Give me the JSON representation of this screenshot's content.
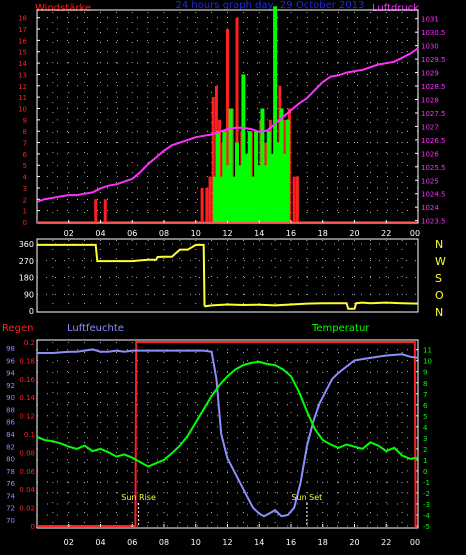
{
  "header": {
    "left_label": "Windstärke",
    "title": "24 hours graph day, 29 October 2013",
    "right_label": "Luftdruck"
  },
  "colors": {
    "red": "#ff2020",
    "blue_title": "#1d2ae0",
    "magenta": "#ff30ff",
    "green": "#00ff00",
    "yellow": "#ffff30",
    "blue_line": "#8e8eff",
    "tick_white": "#ffffff",
    "grid_dot": "#e0e0e0"
  },
  "chart_data": [
    {
      "type": "line",
      "name": "wind-pressure",
      "x_tick_labels": [
        "02",
        "04",
        "06",
        "08",
        "10",
        "12",
        "14",
        "16",
        "18",
        "20",
        "22",
        "00"
      ],
      "y_left": {
        "label": "Windstärke",
        "ticks": [
          0,
          1,
          2,
          3,
          4,
          5,
          6,
          7,
          8,
          9,
          10,
          11,
          12,
          13,
          14,
          15,
          16,
          17,
          18
        ],
        "range": [
          0,
          18.5
        ]
      },
      "y_right": {
        "label": "Luftdruck",
        "ticks": [
          1023.5,
          1024,
          1024.5,
          1025,
          1025.5,
          1026,
          1026.5,
          1027,
          1027.5,
          1028,
          1028.5,
          1029,
          1029.5,
          1030,
          1030.5,
          1031
        ],
        "range": [
          1023.45,
          1031.25
        ]
      },
      "pressure_x": [
        0,
        0.5,
        1,
        1.5,
        2,
        2.5,
        3,
        3.5,
        4,
        4.5,
        5,
        5.5,
        6,
        6.5,
        7,
        7.5,
        8,
        8.5,
        9,
        9.5,
        10,
        10.5,
        11,
        11.5,
        12,
        12.5,
        13,
        13.5,
        14,
        14.5,
        15,
        15.5,
        16,
        16.5,
        17,
        17.5,
        18,
        18.5,
        19,
        19.5,
        20,
        20.5,
        21,
        21.5,
        22,
        22.5,
        23,
        23.5,
        24
      ],
      "pressure_y": [
        1024.2,
        1024.3,
        1024.35,
        1024.4,
        1024.45,
        1024.45,
        1024.5,
        1024.55,
        1024.7,
        1024.8,
        1024.85,
        1024.95,
        1025.05,
        1025.3,
        1025.6,
        1025.85,
        1026.1,
        1026.3,
        1026.4,
        1026.5,
        1026.6,
        1026.65,
        1026.7,
        1026.8,
        1026.9,
        1026.95,
        1026.95,
        1026.9,
        1026.8,
        1026.85,
        1027.1,
        1027.35,
        1027.6,
        1027.85,
        1028.05,
        1028.35,
        1028.65,
        1028.85,
        1028.9,
        1029.0,
        1029.05,
        1029.1,
        1029.2,
        1029.3,
        1029.35,
        1029.4,
        1029.55,
        1029.7,
        1029.9
      ],
      "wind_gusts": [
        {
          "x": 3.7,
          "v": 2
        },
        {
          "x": 4.3,
          "v": 2
        },
        {
          "x": 10.4,
          "v": 3
        },
        {
          "x": 10.7,
          "v": 3
        },
        {
          "x": 10.9,
          "v": 4
        },
        {
          "x": 11.1,
          "v": 11
        },
        {
          "x": 11.3,
          "v": 12
        },
        {
          "x": 11.5,
          "v": 9
        },
        {
          "x": 11.7,
          "v": 7
        },
        {
          "x": 12.0,
          "v": 17
        },
        {
          "x": 12.3,
          "v": 10
        },
        {
          "x": 12.6,
          "v": 18
        },
        {
          "x": 12.9,
          "v": 8
        },
        {
          "x": 13.2,
          "v": 6
        },
        {
          "x": 13.5,
          "v": 8
        },
        {
          "x": 13.8,
          "v": 7
        },
        {
          "x": 14.1,
          "v": 9
        },
        {
          "x": 14.4,
          "v": 7
        },
        {
          "x": 14.7,
          "v": 9
        },
        {
          "x": 15.0,
          "v": 8
        },
        {
          "x": 15.3,
          "v": 12
        },
        {
          "x": 15.6,
          "v": 9
        },
        {
          "x": 15.9,
          "v": 10
        },
        {
          "x": 16.2,
          "v": 4
        },
        {
          "x": 16.4,
          "v": 4
        }
      ],
      "wind_avg": [
        {
          "x": 11.2,
          "v": 4
        },
        {
          "x": 11.4,
          "v": 8
        },
        {
          "x": 11.6,
          "v": 4
        },
        {
          "x": 11.8,
          "v": 8
        },
        {
          "x": 12.0,
          "v": 5
        },
        {
          "x": 12.2,
          "v": 10
        },
        {
          "x": 12.4,
          "v": 4
        },
        {
          "x": 12.6,
          "v": 7
        },
        {
          "x": 12.8,
          "v": 5
        },
        {
          "x": 13.0,
          "v": 13
        },
        {
          "x": 13.2,
          "v": 6
        },
        {
          "x": 13.4,
          "v": 8
        },
        {
          "x": 13.6,
          "v": 4
        },
        {
          "x": 13.8,
          "v": 8
        },
        {
          "x": 14.0,
          "v": 5
        },
        {
          "x": 14.2,
          "v": 10
        },
        {
          "x": 14.4,
          "v": 5
        },
        {
          "x": 14.6,
          "v": 8
        },
        {
          "x": 14.8,
          "v": 6
        },
        {
          "x": 15.0,
          "v": 19
        },
        {
          "x": 15.2,
          "v": 7
        },
        {
          "x": 15.4,
          "v": 10
        },
        {
          "x": 15.6,
          "v": 6
        },
        {
          "x": 15.8,
          "v": 9
        }
      ]
    },
    {
      "type": "line",
      "name": "wind-direction",
      "y_left": {
        "ticks": [
          0,
          90,
          180,
          270,
          360
        ],
        "range": [
          0,
          360
        ]
      },
      "compass_labels": [
        "N",
        "W",
        "S",
        "O",
        "N"
      ],
      "direction_x": [
        0,
        1,
        2,
        3,
        3.7,
        3.8,
        4.5,
        5,
        5.5,
        6,
        6.5,
        7,
        7.5,
        7.6,
        8,
        8.5,
        9,
        9.5,
        10,
        10.5,
        10.55,
        10.6,
        11,
        12,
        13,
        14,
        15,
        16,
        17,
        18,
        19,
        19.5,
        19.6,
        20,
        20.1,
        20.5,
        21,
        22,
        23,
        24
      ],
      "direction_y": [
        355,
        355,
        355,
        355,
        355,
        268,
        268,
        268,
        268,
        268,
        272,
        275,
        275,
        290,
        292,
        292,
        330,
        330,
        355,
        355,
        30,
        25,
        30,
        35,
        32,
        34,
        30,
        35,
        40,
        42,
        42,
        42,
        12,
        12,
        42,
        45,
        42,
        45,
        42,
        40
      ]
    },
    {
      "type": "line",
      "name": "humidity-temperature-rain",
      "header": {
        "left": "Regen",
        "mid": "Luftfeuchte",
        "right": "Temperatur"
      },
      "rain": {
        "ticks": [
          0,
          0.02,
          0.04,
          0.06,
          0.08,
          0.1,
          0.12,
          0.14,
          0.16,
          0.18,
          0.2
        ],
        "range": [
          0,
          0.2
        ]
      },
      "humidity": {
        "ticks": [
          70,
          72,
          74,
          76,
          78,
          80,
          82,
          84,
          86,
          88,
          90,
          92,
          94,
          96,
          98
        ],
        "range": [
          69,
          99
        ]
      },
      "temperature": {
        "ticks": [
          -5,
          -4,
          -3,
          -2,
          -1,
          0,
          1,
          2,
          3,
          4,
          5,
          6,
          7,
          8,
          9,
          10,
          11
        ],
        "range": [
          -5,
          11.7
        ]
      },
      "temp_x": [
        0,
        0.5,
        1,
        1.5,
        2,
        2.5,
        3,
        3.5,
        4,
        4.5,
        5,
        5.5,
        6,
        6.5,
        7,
        7.5,
        8,
        8.5,
        9,
        9.5,
        10,
        10.5,
        11,
        11.5,
        12,
        12.5,
        13,
        13.5,
        14,
        14.5,
        15,
        15.5,
        16,
        16.5,
        17,
        17.5,
        18,
        18.5,
        19,
        19.5,
        20,
        20.5,
        21,
        21.5,
        22,
        22.5,
        23,
        23.5,
        24
      ],
      "temp_y": [
        3.1,
        2.8,
        2.7,
        2.5,
        2.2,
        2.0,
        2.3,
        1.8,
        2.0,
        1.7,
        1.3,
        1.5,
        1.2,
        0.8,
        0.4,
        0.7,
        1.0,
        1.6,
        2.3,
        3.2,
        4.4,
        5.6,
        6.8,
        7.8,
        8.6,
        9.2,
        9.6,
        9.8,
        9.9,
        9.7,
        9.6,
        9.2,
        8.6,
        7.2,
        5.4,
        3.8,
        2.8,
        2.4,
        2.1,
        2.4,
        2.2,
        2.0,
        2.6,
        2.3,
        1.8,
        2.1,
        1.4,
        1.1,
        1.2
      ],
      "hum_x": [
        0,
        1,
        2,
        2.5,
        3,
        3.5,
        4,
        4.5,
        5,
        5.5,
        6,
        7,
        8,
        9,
        10,
        10.5,
        11,
        11.3,
        11.6,
        12,
        12.4,
        12.8,
        13.2,
        13.6,
        14,
        14.3,
        14.6,
        15,
        15.4,
        15.8,
        16.2,
        16.6,
        17,
        17.4,
        17.8,
        18.2,
        18.6,
        19,
        19.5,
        20,
        21,
        22,
        23,
        23.5,
        24
      ],
      "hum_y": [
        97.2,
        97.2,
        97.4,
        97.4,
        97.6,
        97.8,
        97.4,
        97.4,
        97.6,
        97.4,
        97.6,
        97.6,
        97.6,
        97.6,
        97.6,
        97.6,
        97.4,
        93,
        84,
        80,
        78,
        76,
        74,
        72,
        71,
        70.6,
        71,
        71.6,
        70.6,
        70.8,
        72,
        76,
        82,
        86,
        89,
        91,
        93,
        94,
        95,
        96,
        96.4,
        96.8,
        97,
        96.6,
        96.4
      ],
      "rain_x": [
        0,
        6.2,
        6.25,
        23.8,
        23.85,
        24
      ],
      "rain_y": [
        0,
        0,
        0.2,
        0.2,
        0,
        0
      ],
      "annotations": [
        {
          "label": "Sun Rise",
          "x": 6.4
        },
        {
          "label": "Sun Set",
          "x": 17.0
        }
      ]
    }
  ]
}
